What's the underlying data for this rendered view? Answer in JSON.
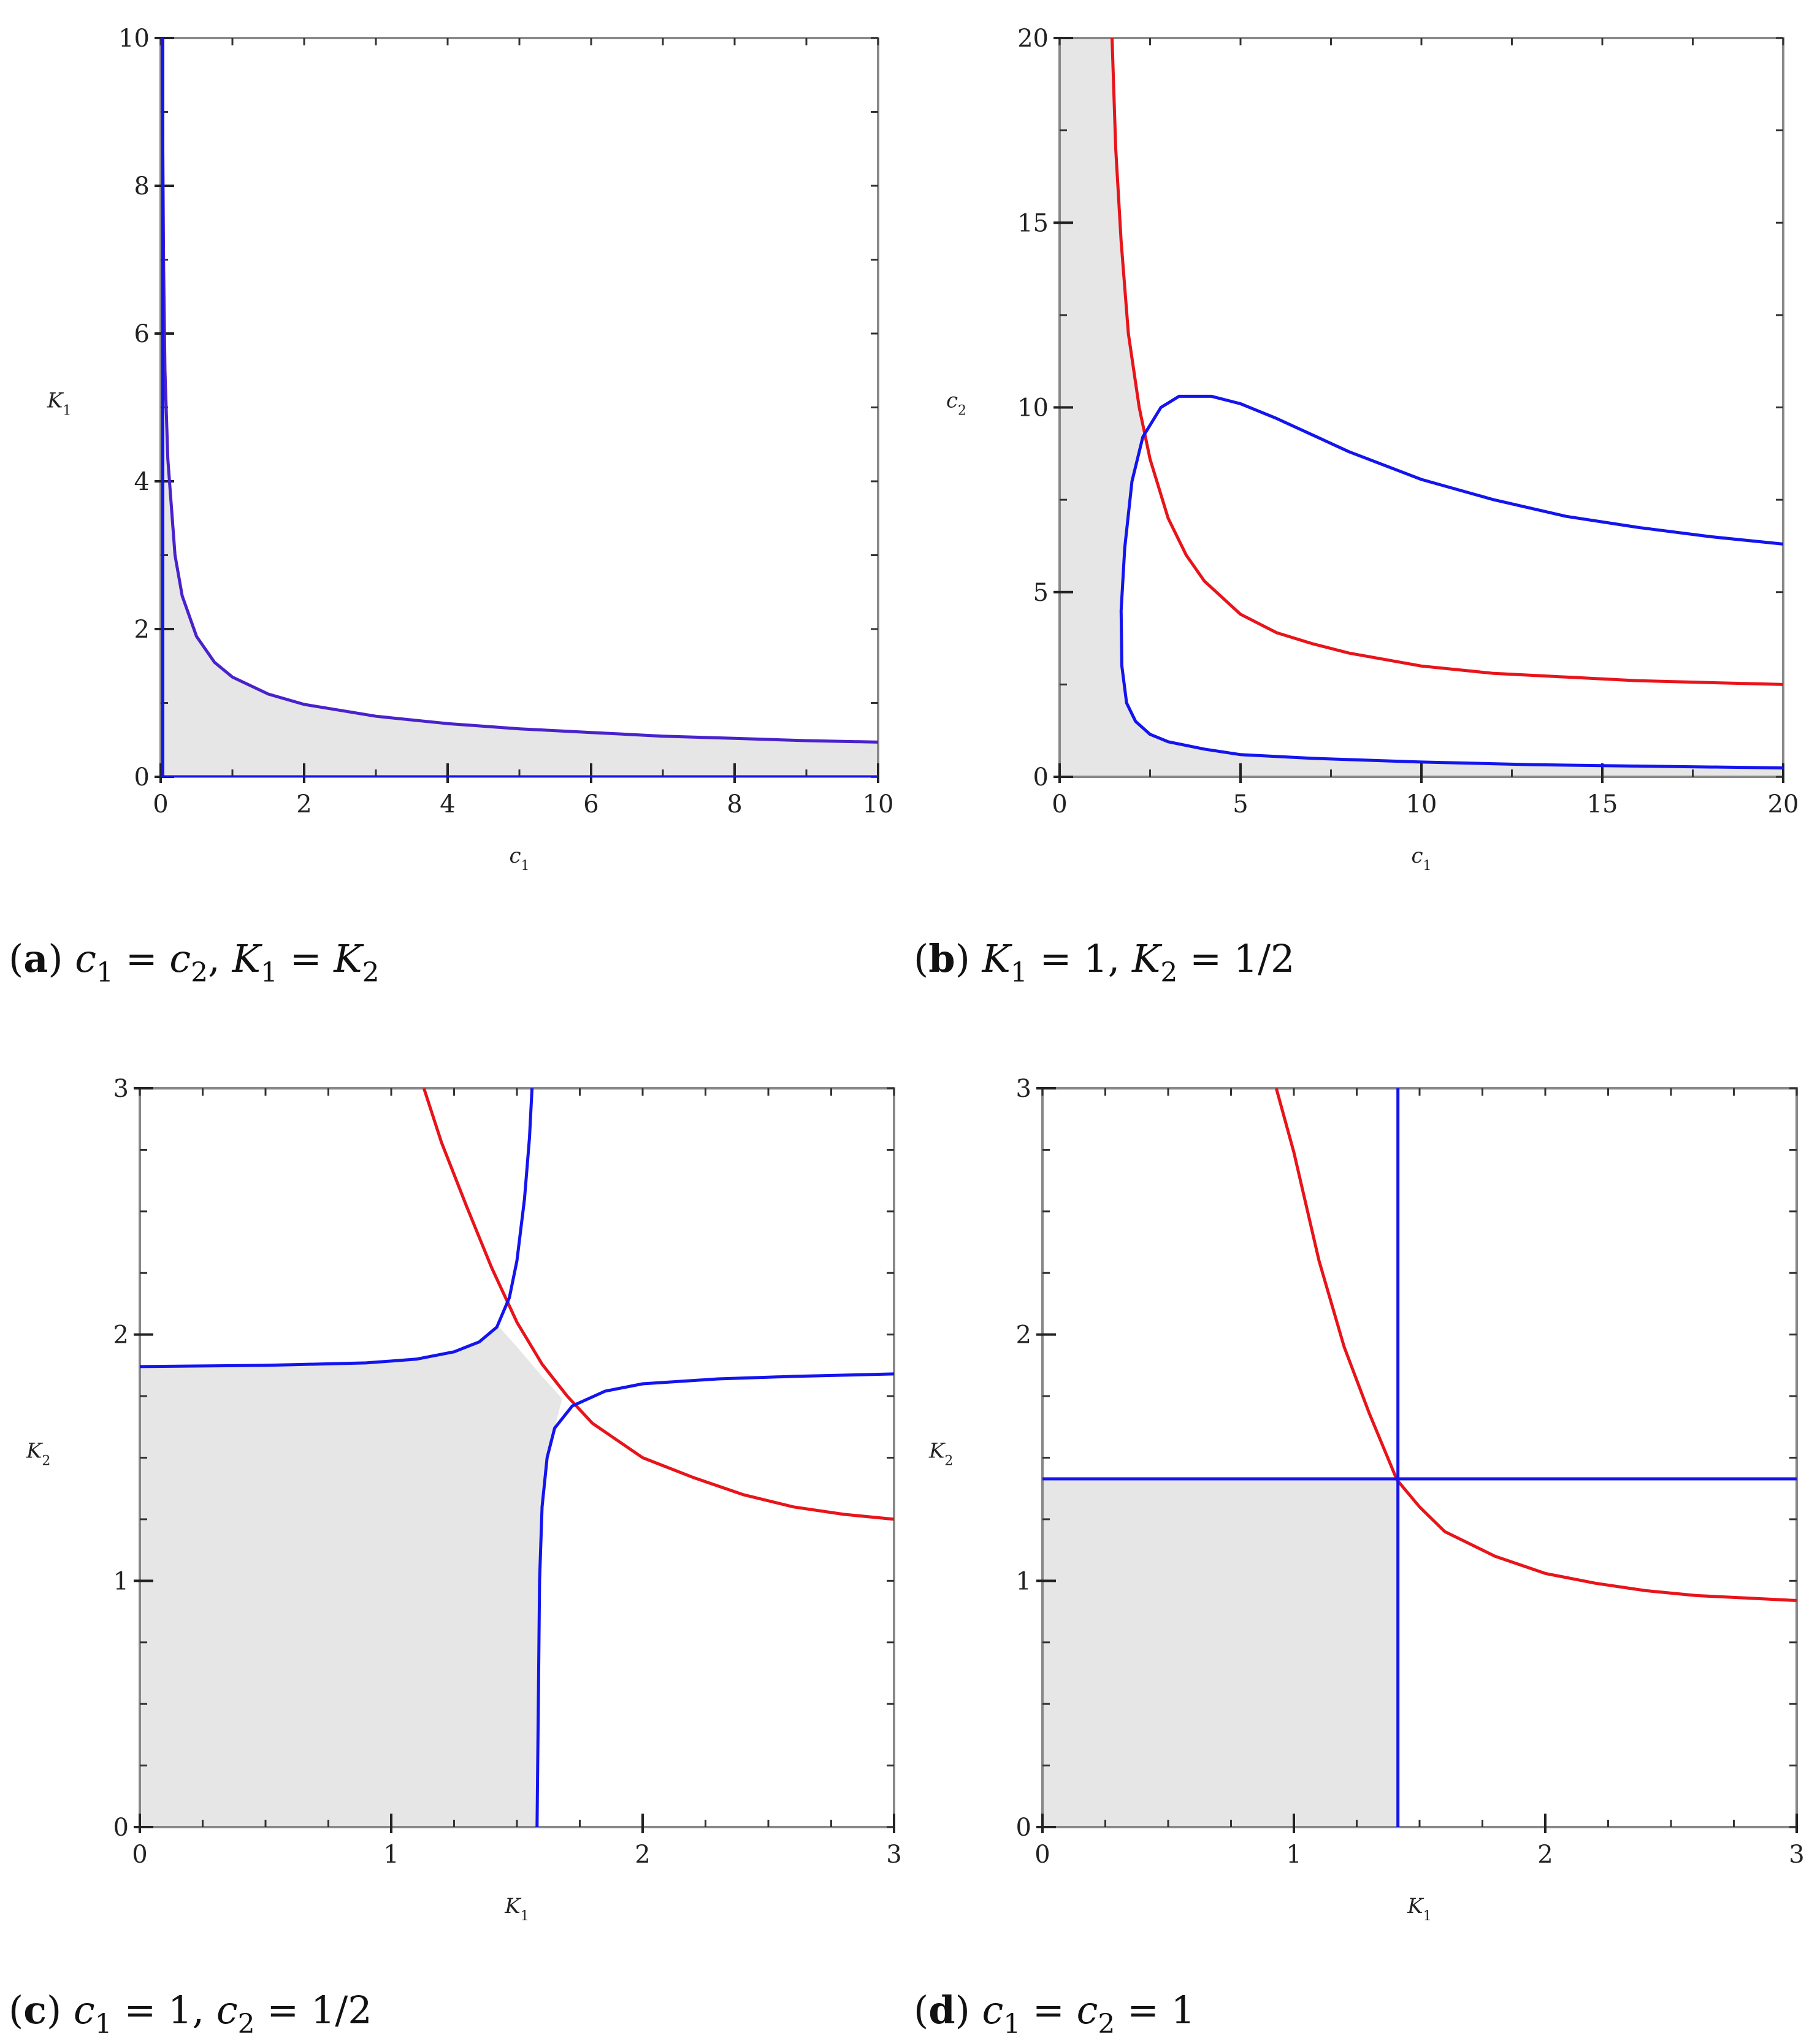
{
  "colors": {
    "red": "#e8141a",
    "blue": "#1414ee",
    "purple": "#4a22cc",
    "shade": "#e6e6e6",
    "frame": "#888888"
  },
  "chart_data": [
    {
      "id": "a",
      "type": "line",
      "caption": {
        "letter": "a",
        "text": "c1 = c2, K1 = K2",
        "parts": [
          {
            "v": "c"
          },
          {
            "v": "1",
            "s": true
          },
          {
            "v": " = ",
            "n": true
          },
          {
            "v": "c"
          },
          {
            "v": "2",
            "s": true
          },
          {
            "v": ", ",
            "n": true
          },
          {
            "v": "K"
          },
          {
            "v": "1",
            "s": true
          },
          {
            "v": " = ",
            "n": true
          },
          {
            "v": "K"
          },
          {
            "v": "2",
            "s": true
          }
        ]
      },
      "xlabel": {
        "base": "c",
        "sub": "1"
      },
      "ylabel": {
        "base": "K",
        "sub": "1"
      },
      "xlim": [
        0,
        10
      ],
      "ylim": [
        0,
        10
      ],
      "xticks": [
        0,
        2,
        4,
        6,
        8,
        10
      ],
      "yticks": [
        0,
        2,
        4,
        6,
        8,
        10
      ],
      "xtick_labels": [
        "0",
        "2",
        "4",
        "6",
        "8",
        "10"
      ],
      "ytick_labels": [
        "0",
        "2",
        "4",
        "6",
        "8",
        "10"
      ],
      "series": [
        {
          "color": "purple",
          "points": [
            [
              0.02,
              10
            ],
            [
              0.04,
              7
            ],
            [
              0.06,
              5.5
            ],
            [
              0.1,
              4.3
            ],
            [
              0.2,
              3
            ],
            [
              0.3,
              2.45
            ],
            [
              0.5,
              1.9
            ],
            [
              0.75,
              1.55
            ],
            [
              1,
              1.35
            ],
            [
              1.5,
              1.12
            ],
            [
              2,
              0.98
            ],
            [
              3,
              0.82
            ],
            [
              4,
              0.72
            ],
            [
              5,
              0.65
            ],
            [
              6,
              0.6
            ],
            [
              7,
              0.55
            ],
            [
              8,
              0.52
            ],
            [
              9,
              0.49
            ],
            [
              10,
              0.47
            ]
          ]
        },
        {
          "color": "blue",
          "points": [
            [
              0.03,
              0
            ],
            [
              0.03,
              10
            ]
          ]
        },
        {
          "color": "blue",
          "points": [
            [
              0,
              0
            ],
            [
              10,
              0
            ]
          ]
        }
      ],
      "shaded": [
        [
          0.03,
          0
        ],
        [
          0.03,
          10
        ],
        [
          0.04,
          7
        ],
        [
          0.06,
          5.5
        ],
        [
          0.1,
          4.3
        ],
        [
          0.2,
          3
        ],
        [
          0.3,
          2.45
        ],
        [
          0.5,
          1.9
        ],
        [
          0.75,
          1.55
        ],
        [
          1,
          1.35
        ],
        [
          1.5,
          1.12
        ],
        [
          2,
          0.98
        ],
        [
          3,
          0.82
        ],
        [
          4,
          0.72
        ],
        [
          5,
          0.65
        ],
        [
          6,
          0.6
        ],
        [
          7,
          0.55
        ],
        [
          8,
          0.52
        ],
        [
          9,
          0.49
        ],
        [
          10,
          0.47
        ],
        [
          10,
          0
        ]
      ]
    },
    {
      "id": "b",
      "type": "line",
      "caption": {
        "letter": "b",
        "text": "K1 = 1, K2 = 1/2",
        "parts": [
          {
            "v": "K"
          },
          {
            "v": "1",
            "s": true
          },
          {
            "v": " = 1, ",
            "n": true
          },
          {
            "v": "K"
          },
          {
            "v": "2",
            "s": true
          },
          {
            "v": " = 1/2",
            "n": true
          }
        ]
      },
      "xlabel": {
        "base": "c",
        "sub": "1"
      },
      "ylabel": {
        "base": "c",
        "sub": "2"
      },
      "xlim": [
        0,
        20
      ],
      "ylim": [
        0,
        20
      ],
      "xticks": [
        0,
        5,
        10,
        15,
        20
      ],
      "yticks": [
        0,
        5,
        10,
        15,
        20
      ],
      "xtick_labels": [
        "0",
        "5",
        "10",
        "15",
        "20"
      ],
      "ytick_labels": [
        "0",
        "5",
        "10",
        "15",
        "20"
      ],
      "series": [
        {
          "color": "red",
          "points": [
            [
              1.45,
              20
            ],
            [
              1.55,
              17
            ],
            [
              1.7,
              14.5
            ],
            [
              1.9,
              12
            ],
            [
              2.2,
              10
            ],
            [
              2.5,
              8.6
            ],
            [
              3,
              7
            ],
            [
              3.5,
              6
            ],
            [
              4,
              5.3
            ],
            [
              5,
              4.4
            ],
            [
              6,
              3.9
            ],
            [
              7,
              3.6
            ],
            [
              8,
              3.35
            ],
            [
              10,
              3
            ],
            [
              12,
              2.8
            ],
            [
              14,
              2.7
            ],
            [
              16,
              2.6
            ],
            [
              18,
              2.55
            ],
            [
              20,
              2.5
            ]
          ]
        },
        {
          "color": "blue",
          "points": [
            [
              20,
              6.3
            ],
            [
              18,
              6.5
            ],
            [
              16,
              6.75
            ],
            [
              14,
              7.05
            ],
            [
              12,
              7.5
            ],
            [
              10,
              8.05
            ],
            [
              8,
              8.8
            ],
            [
              7,
              9.25
            ],
            [
              6,
              9.7
            ],
            [
              5,
              10.1
            ],
            [
              4.2,
              10.3
            ],
            [
              3.3,
              10.3
            ],
            [
              2.8,
              10
            ],
            [
              2.3,
              9.2
            ],
            [
              2,
              8
            ],
            [
              1.8,
              6.2
            ],
            [
              1.7,
              4.5
            ],
            [
              1.72,
              3
            ],
            [
              1.85,
              2
            ],
            [
              2.1,
              1.5
            ],
            [
              2.5,
              1.15
            ],
            [
              3,
              0.95
            ],
            [
              4,
              0.75
            ],
            [
              5,
              0.6
            ],
            [
              7,
              0.5
            ],
            [
              10,
              0.4
            ],
            [
              13,
              0.33
            ],
            [
              16,
              0.29
            ],
            [
              20,
              0.24
            ]
          ]
        }
      ],
      "shaded": [
        [
          0,
          0
        ],
        [
          0,
          20
        ],
        [
          1.45,
          20
        ],
        [
          1.55,
          17
        ],
        [
          1.7,
          14.5
        ],
        [
          1.9,
          12
        ],
        [
          2.2,
          10
        ],
        [
          2.3,
          9.2
        ],
        [
          2,
          8
        ],
        [
          1.8,
          6.2
        ],
        [
          1.7,
          4.5
        ],
        [
          1.72,
          3
        ],
        [
          1.85,
          2
        ],
        [
          2.1,
          1.5
        ],
        [
          2.5,
          1.15
        ],
        [
          3,
          0.95
        ],
        [
          4,
          0.75
        ],
        [
          5,
          0.6
        ],
        [
          7,
          0.5
        ],
        [
          10,
          0.4
        ],
        [
          13,
          0.33
        ],
        [
          16,
          0.29
        ],
        [
          20,
          0.24
        ],
        [
          20,
          0
        ]
      ]
    },
    {
      "id": "c",
      "type": "line",
      "caption": {
        "letter": "c",
        "text": "c1 = 1, c2 = 1/2",
        "parts": [
          {
            "v": "c"
          },
          {
            "v": "1",
            "s": true
          },
          {
            "v": " = 1, ",
            "n": true
          },
          {
            "v": "c"
          },
          {
            "v": "2",
            "s": true
          },
          {
            "v": " = 1/2",
            "n": true
          }
        ]
      },
      "xlabel": {
        "base": "K",
        "sub": "1"
      },
      "ylabel": {
        "base": "K",
        "sub": "2"
      },
      "xlim": [
        0,
        3
      ],
      "ylim": [
        0,
        3
      ],
      "xticks": [
        0,
        1,
        2,
        3
      ],
      "yticks": [
        0,
        1,
        2,
        3
      ],
      "xtick_labels": [
        "0",
        "1",
        "2",
        "3"
      ],
      "ytick_labels": [
        "0",
        "1",
        "2",
        "3"
      ],
      "minor_step": 0.25,
      "series": [
        {
          "color": "red",
          "points": [
            [
              1.13,
              3
            ],
            [
              1.2,
              2.78
            ],
            [
              1.3,
              2.52
            ],
            [
              1.4,
              2.27
            ],
            [
              1.5,
              2.05
            ],
            [
              1.6,
              1.88
            ],
            [
              1.7,
              1.75
            ],
            [
              1.8,
              1.64
            ],
            [
              2,
              1.5
            ],
            [
              2.2,
              1.42
            ],
            [
              2.4,
              1.35
            ],
            [
              2.6,
              1.3
            ],
            [
              2.8,
              1.27
            ],
            [
              3,
              1.25
            ]
          ]
        },
        {
          "color": "blue",
          "points": [
            [
              0,
              1.87
            ],
            [
              0.5,
              1.875
            ],
            [
              0.9,
              1.885
            ],
            [
              1.1,
              1.9
            ],
            [
              1.25,
              1.93
            ],
            [
              1.35,
              1.97
            ],
            [
              1.42,
              2.03
            ],
            [
              1.47,
              2.15
            ],
            [
              1.5,
              2.3
            ],
            [
              1.53,
              2.55
            ],
            [
              1.55,
              2.8
            ],
            [
              1.56,
              3
            ]
          ]
        },
        {
          "color": "blue",
          "points": [
            [
              1.58,
              0
            ],
            [
              1.585,
              0.5
            ],
            [
              1.59,
              1
            ],
            [
              1.6,
              1.3
            ],
            [
              1.62,
              1.5
            ],
            [
              1.65,
              1.62
            ],
            [
              1.72,
              1.71
            ],
            [
              1.85,
              1.77
            ],
            [
              2,
              1.8
            ],
            [
              2.3,
              1.82
            ],
            [
              2.6,
              1.83
            ],
            [
              3,
              1.84
            ]
          ]
        }
      ],
      "shaded": [
        [
          0,
          0
        ],
        [
          0,
          1.87
        ],
        [
          0.5,
          1.875
        ],
        [
          0.9,
          1.885
        ],
        [
          1.1,
          1.9
        ],
        [
          1.25,
          1.93
        ],
        [
          1.35,
          1.97
        ],
        [
          1.43,
          2.03
        ],
        [
          1.5,
          1.95
        ],
        [
          1.6,
          1.83
        ],
        [
          1.68,
          1.74
        ],
        [
          1.65,
          1.62
        ],
        [
          1.62,
          1.5
        ],
        [
          1.6,
          1.3
        ],
        [
          1.59,
          1
        ],
        [
          1.585,
          0.5
        ],
        [
          1.58,
          0
        ]
      ]
    },
    {
      "id": "d",
      "type": "line",
      "caption": {
        "letter": "d",
        "text": "c1 = c2 = 1",
        "parts": [
          {
            "v": "c"
          },
          {
            "v": "1",
            "s": true
          },
          {
            "v": " = ",
            "n": true
          },
          {
            "v": "c"
          },
          {
            "v": "2",
            "s": true
          },
          {
            "v": " = 1",
            "n": true
          }
        ]
      },
      "xlabel": {
        "base": "K",
        "sub": "1"
      },
      "ylabel": {
        "base": "K",
        "sub": "2"
      },
      "xlim": [
        0,
        3
      ],
      "ylim": [
        0,
        3
      ],
      "xticks": [
        0,
        1,
        2,
        3
      ],
      "yticks": [
        0,
        1,
        2,
        3
      ],
      "xtick_labels": [
        "0",
        "1",
        "2",
        "3"
      ],
      "ytick_labels": [
        "0",
        "1",
        "2",
        "3"
      ],
      "minor_step": 0.25,
      "series": [
        {
          "color": "red",
          "points": [
            [
              0.93,
              3
            ],
            [
              1,
              2.74
            ],
            [
              1.1,
              2.3
            ],
            [
              1.2,
              1.95
            ],
            [
              1.3,
              1.68
            ],
            [
              1.41,
              1.41
            ],
            [
              1.5,
              1.3
            ],
            [
              1.6,
              1.2
            ],
            [
              1.8,
              1.1
            ],
            [
              2,
              1.03
            ],
            [
              2.2,
              0.99
            ],
            [
              2.4,
              0.96
            ],
            [
              2.6,
              0.94
            ],
            [
              2.8,
              0.93
            ],
            [
              3,
              0.92
            ]
          ]
        },
        {
          "color": "blue",
          "points": [
            [
              1.414,
              0
            ],
            [
              1.414,
              3
            ]
          ]
        },
        {
          "color": "blue",
          "points": [
            [
              0,
              1.414
            ],
            [
              3,
              1.414
            ]
          ]
        }
      ],
      "shaded": [
        [
          0,
          0
        ],
        [
          0,
          1.414
        ],
        [
          1.414,
          1.414
        ],
        [
          1.414,
          0
        ]
      ]
    }
  ]
}
